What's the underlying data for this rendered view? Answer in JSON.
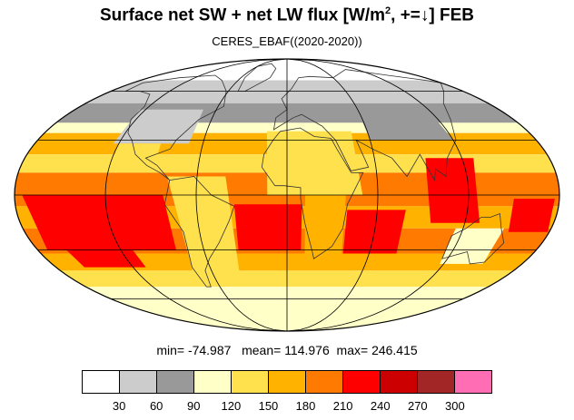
{
  "title": {
    "main": "Surface net SW + net LW flux [W/m",
    "sup": "2",
    "rest": ", +=↓]  FEB"
  },
  "subtitle": "CERES_EBAF((2020-2020))",
  "stats": {
    "min_label": "min=",
    "min": "-74.987",
    "mean_label": "mean=",
    "mean": "114.976",
    "max_label": "max=",
    "max": "246.415"
  },
  "colorbar": {
    "colors": [
      "#ffffff",
      "#cccccc",
      "#999999",
      "#ffffc8",
      "#ffe14d",
      "#ffb300",
      "#ff7a00",
      "#ff0000",
      "#cc0000",
      "#a32626",
      "#ff6eb4"
    ],
    "ticks": [
      "30",
      "60",
      "90",
      "120",
      "150",
      "180",
      "210",
      "240",
      "270",
      "300"
    ]
  },
  "map": {
    "projection": "mollweide",
    "graticule_lat": [
      -60,
      -30,
      0,
      30,
      60
    ],
    "graticule_lon": [
      -120,
      -60,
      0,
      60,
      120
    ],
    "band_colors": {
      "polar": "#ffffff",
      "subpolar": "#cccccc",
      "cloud": "#999999",
      "pale": "#ffffc8",
      "yellow": "#ffe14d",
      "orange": "#ffb300",
      "dorange": "#ff7a00",
      "red": "#ff0000"
    }
  }
}
